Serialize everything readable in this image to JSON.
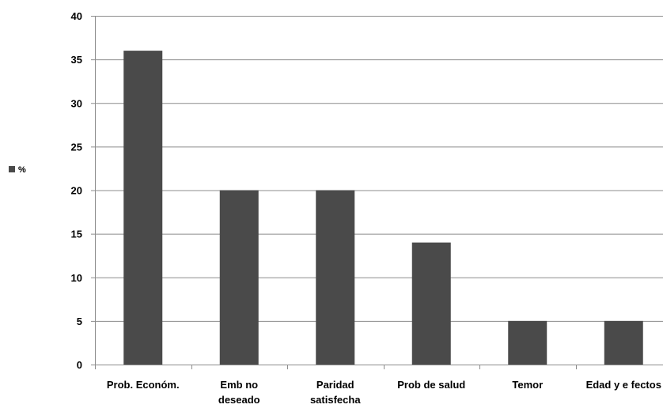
{
  "chart_data": {
    "type": "bar",
    "categories": [
      [
        "Prob. Económ."
      ],
      [
        "Emb no",
        "deseado"
      ],
      [
        "Paridad",
        "satisfecha"
      ],
      [
        "Prob de salud"
      ],
      [
        "Temor"
      ],
      [
        "Edad y e fectos"
      ]
    ],
    "series": [
      {
        "name": "%",
        "values": [
          36,
          20,
          20,
          14,
          5,
          5
        ]
      }
    ],
    "ylim": [
      0,
      40
    ],
    "yticks": [
      0,
      5,
      10,
      15,
      20,
      25,
      30,
      35,
      40
    ],
    "grid": true,
    "legend": "left",
    "colors": {
      "bar": "#4a4a4a",
      "grid": "#8c8c8c",
      "axis": "#8c8c8c"
    }
  }
}
